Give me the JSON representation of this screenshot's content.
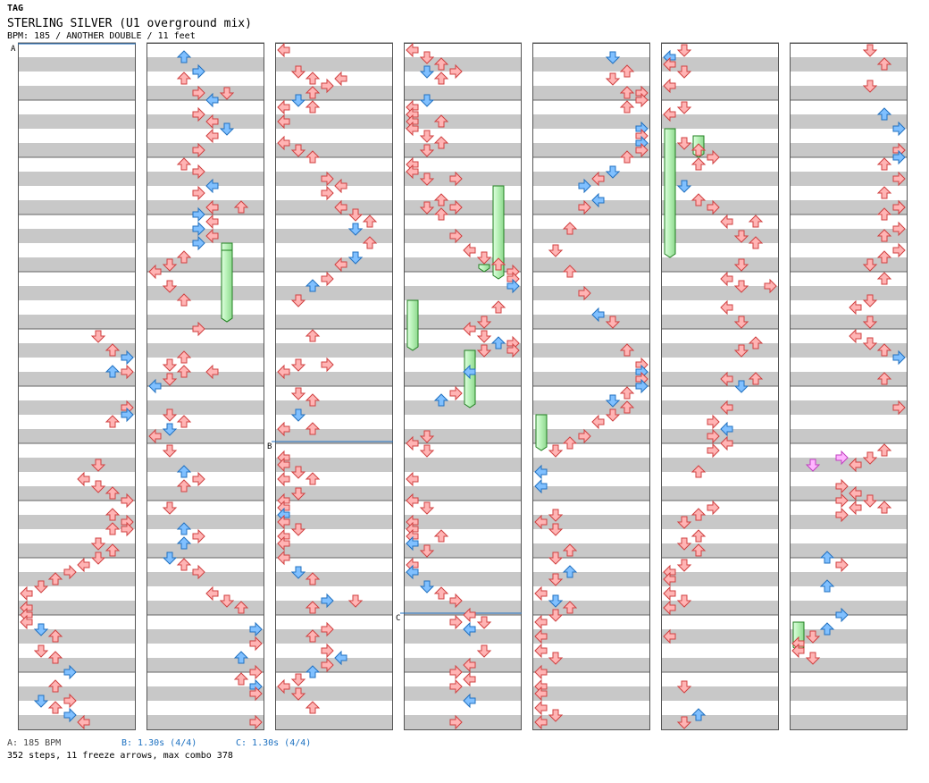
{
  "header": {
    "genre": "TAG",
    "title": "STERLING SILVER (U1 overground mix)",
    "info": "BPM: 185 / ANOTHER DOUBLE / 11 feet"
  },
  "markers": {
    "a": "A",
    "b": "B",
    "c": "C"
  },
  "footer": {
    "legend_a": "A: 185 BPM",
    "legend_b": "B: 1.30s (4/4)",
    "legend_c": "C: 1.30s (4/4)",
    "summary": "352 steps, 11 freeze arrows, max combo 378"
  },
  "colors": {
    "stripe": "#c8c8c8",
    "note_red": "#ffb4b4",
    "note_red_stroke": "#d04040",
    "note_blue": "#80c0ff",
    "note_blue_stroke": "#2070c0",
    "note_pink": "#ffb4ff",
    "freeze_fill": "#b4f0b4",
    "freeze_stroke": "#208020",
    "stop_line": "#2070c0",
    "legend_a": "#444444",
    "legend_b": "#1a6fc0",
    "legend_c": "#1a6fc0"
  },
  "chart_data": {
    "type": "table",
    "columns": 7,
    "measures_per_column": 12,
    "lanes": 8,
    "lane_directions": [
      "left",
      "down",
      "up",
      "right",
      "left",
      "down",
      "up",
      "right"
    ],
    "totals": {
      "steps": 352,
      "freeze_arrows": 11,
      "max_combo": 378
    },
    "notes": [
      [
        0,
        0,
        6,
        "red"
      ],
      [
        0,
        1,
        5,
        "red"
      ],
      [
        0,
        2,
        4,
        "red"
      ],
      [
        0,
        3,
        3,
        "red"
      ],
      [
        0,
        4,
        2,
        "blue"
      ],
      [
        0,
        5,
        1,
        "red"
      ],
      [
        0,
        6,
        0,
        "red"
      ],
      [
        0,
        7,
        3,
        "red"
      ],
      [
        1,
        0,
        4,
        "red"
      ],
      [
        1,
        2,
        5,
        "red"
      ],
      [
        1,
        3,
        6,
        "red"
      ],
      [
        1,
        4,
        7,
        "red"
      ],
      [
        1,
        6,
        4,
        "red"
      ],
      [
        1,
        8,
        3,
        "blue"
      ],
      [
        1,
        10,
        2,
        "red"
      ],
      [
        1,
        12,
        2,
        "blue"
      ],
      [
        2,
        0,
        0,
        "red"
      ],
      [
        2,
        2,
        2,
        "red"
      ],
      [
        2,
        4,
        4,
        "red"
      ],
      [
        2,
        6,
        5,
        "red"
      ],
      [
        2,
        8,
        3,
        "blue"
      ],
      [
        2,
        9,
        6,
        "red"
      ],
      [
        2,
        10,
        7,
        "red"
      ],
      [
        2,
        12,
        7,
        "blue"
      ]
    ],
    "freezes": [
      [
        1,
        3,
        3,
        4,
        6,
        5
      ],
      [
        1,
        3,
        4,
        4,
        6,
        5
      ],
      [
        5,
        1,
        3,
        3,
        5,
        0
      ],
      [
        5,
        1,
        4,
        1,
        7,
        2
      ],
      [
        3,
        3,
        6,
        3,
        7,
        5
      ],
      [
        3,
        4,
        3,
        5,
        2,
        0
      ],
      [
        3,
        5,
        2,
        6,
        2,
        4
      ],
      [
        3,
        2,
        3,
        4,
        0,
        6
      ],
      [
        4,
        6,
        3,
        4,
        0,
        0
      ],
      [
        6,
        10,
        0,
        10,
        4,
        0
      ],
      [
        6,
        10,
        3,
        10,
        4,
        0
      ]
    ],
    "stops": [
      {
        "label": "B",
        "column": 2,
        "measure": 7
      },
      {
        "label": "C",
        "column": 3,
        "measure": 10
      }
    ]
  }
}
